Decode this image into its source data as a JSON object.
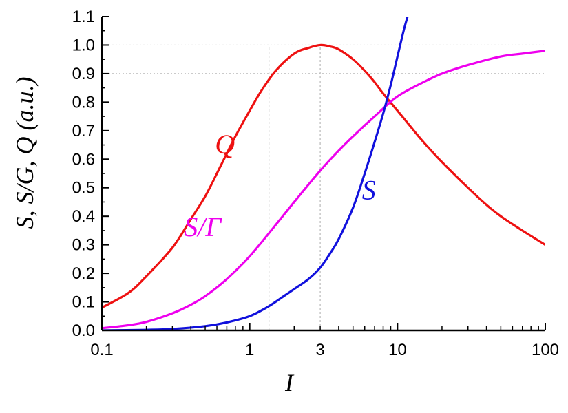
{
  "chart_data": {
    "type": "line",
    "xlabel": "I",
    "ylabel": "S,  S/G,  Q  (a.u.)",
    "xscale": "log",
    "xlim": [
      0.1,
      100
    ],
    "ylim": [
      0.0,
      1.1
    ],
    "xticks": [
      {
        "value": 0.1,
        "label": "0.1"
      },
      {
        "value": 1,
        "label": "1"
      },
      {
        "value": 3,
        "label": "3"
      },
      {
        "value": 10,
        "label": "10"
      },
      {
        "value": 100,
        "label": "100"
      }
    ],
    "yticks": [
      {
        "value": 0.0,
        "label": "0.0"
      },
      {
        "value": 0.1,
        "label": "0.1"
      },
      {
        "value": 0.2,
        "label": "0.2"
      },
      {
        "value": 0.3,
        "label": "0.3"
      },
      {
        "value": 0.4,
        "label": "0.4"
      },
      {
        "value": 0.5,
        "label": "0.5"
      },
      {
        "value": 0.6,
        "label": "0.6"
      },
      {
        "value": 0.7,
        "label": "0.7"
      },
      {
        "value": 0.8,
        "label": "0.8"
      },
      {
        "value": 0.9,
        "label": "0.9"
      },
      {
        "value": 1.0,
        "label": "1.0"
      },
      {
        "value": 1.1,
        "label": "1.1"
      }
    ],
    "reference_lines": {
      "horizontal": [
        0.9,
        1.0
      ],
      "vertical": [
        1.35,
        3.0
      ]
    },
    "series": [
      {
        "name": "Q",
        "color": "#ee1111",
        "x": [
          0.1,
          0.15,
          0.2,
          0.3,
          0.4,
          0.5,
          0.6,
          0.7,
          0.8,
          1.0,
          1.2,
          1.5,
          2.0,
          2.5,
          3.0,
          3.5,
          4.0,
          5.0,
          6.0,
          7.0,
          8.0,
          10.0,
          12.0,
          15.0,
          20.0,
          30.0,
          40.0,
          50.0,
          70.0,
          100.0
        ],
        "y": [
          0.08,
          0.13,
          0.19,
          0.29,
          0.39,
          0.47,
          0.55,
          0.62,
          0.68,
          0.77,
          0.84,
          0.91,
          0.97,
          0.99,
          1.0,
          0.995,
          0.985,
          0.95,
          0.91,
          0.87,
          0.83,
          0.77,
          0.72,
          0.66,
          0.59,
          0.5,
          0.44,
          0.4,
          0.35,
          0.3
        ]
      },
      {
        "name": "S/Γ",
        "color": "#ee00ee",
        "x": [
          0.1,
          0.15,
          0.2,
          0.3,
          0.4,
          0.5,
          0.7,
          1.0,
          1.5,
          2.0,
          3.0,
          4.0,
          5.0,
          7.0,
          10.0,
          15.0,
          20.0,
          30.0,
          50.0,
          70.0,
          100.0
        ],
        "y": [
          0.008,
          0.018,
          0.03,
          0.06,
          0.09,
          0.12,
          0.18,
          0.26,
          0.37,
          0.45,
          0.56,
          0.63,
          0.68,
          0.75,
          0.82,
          0.87,
          0.9,
          0.93,
          0.96,
          0.97,
          0.98
        ]
      },
      {
        "name": "S",
        "color": "#1111dd",
        "x": [
          0.1,
          0.2,
          0.3,
          0.5,
          0.7,
          1.0,
          1.35,
          1.7,
          2.0,
          2.5,
          3.0,
          3.5,
          4.0,
          5.0,
          6.0,
          7.0,
          8.0,
          9.0,
          10.0,
          11.0,
          11.7
        ],
        "y": [
          0.0,
          0.002,
          0.005,
          0.015,
          0.028,
          0.05,
          0.085,
          0.12,
          0.145,
          0.18,
          0.22,
          0.27,
          0.32,
          0.43,
          0.55,
          0.66,
          0.76,
          0.86,
          0.96,
          1.05,
          1.1
        ]
      }
    ],
    "annotations": [
      {
        "text": "Q",
        "color": "#ee1111",
        "x": 0.68,
        "y": 0.62
      },
      {
        "text": "S/Γ",
        "color": "#ee00ee",
        "x": 0.48,
        "y": 0.33
      },
      {
        "text": "S",
        "color": "#1111dd",
        "x": 6.4,
        "y": 0.46
      }
    ]
  }
}
